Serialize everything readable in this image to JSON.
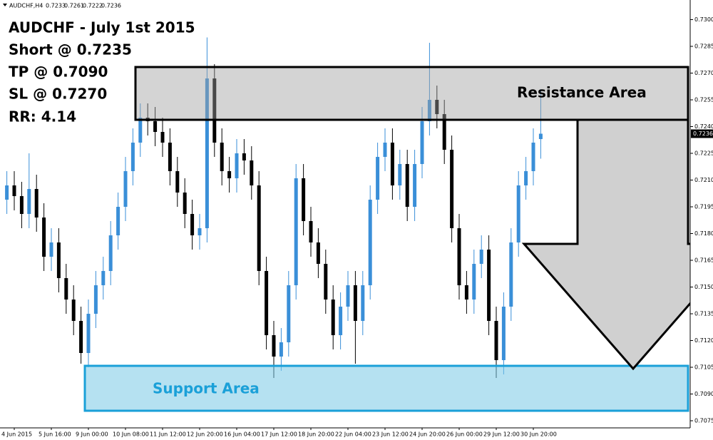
{
  "chart_data": {
    "type": "candlestick",
    "symbol": "AUDCHF,H4",
    "categories": [
      null,
      "4 Jun 2015",
      null,
      null,
      null,
      null,
      "5 Jun 16:00",
      null,
      null,
      null,
      null,
      "9 Jun 00:00",
      null,
      null,
      null,
      null,
      "10 Jun 08:00",
      null,
      null,
      null,
      null,
      "11 Jun 12:00",
      null,
      null,
      null,
      null,
      "12 Jun 20:00",
      null,
      null,
      null,
      null,
      "16 Jun 04:00",
      null,
      null,
      null,
      null,
      "17 Jun 12:00",
      null,
      null,
      null,
      null,
      "18 Jun 20:00",
      null,
      null,
      null,
      null,
      "22 Jun 04:00",
      null,
      null,
      null,
      null,
      "23 Jun 12:00",
      null,
      null,
      null,
      null,
      "24 Jun 20:00",
      null,
      null,
      null,
      null,
      "26 Jun 00:00",
      null,
      null,
      null,
      null,
      "29 Jun 12:00",
      null,
      null,
      null,
      null,
      "30 Jun 20:00",
      null
    ],
    "open": [
      0.7199,
      0.7207,
      0.7201,
      0.7191,
      0.7205,
      0.7189,
      0.7167,
      0.7175,
      0.7155,
      0.7143,
      0.7131,
      0.7113,
      0.7135,
      0.7151,
      0.7159,
      0.7179,
      0.7195,
      0.7215,
      0.7231,
      0.7245,
      0.7243,
      0.7237,
      0.7231,
      0.7215,
      0.7203,
      0.7191,
      0.7179,
      0.7183,
      0.7267,
      0.7231,
      0.7215,
      0.7211,
      0.7225,
      0.7221,
      0.7207,
      0.7159,
      0.7123,
      0.7111,
      0.7119,
      0.7151,
      0.7211,
      0.7187,
      0.7175,
      0.7163,
      0.7143,
      0.7123,
      0.7139,
      0.7151,
      0.7131,
      0.7151,
      0.7199,
      0.7223,
      0.7231,
      0.7207,
      0.7219,
      0.7195,
      0.7219,
      0.7243,
      0.7255,
      0.7247,
      0.7227,
      0.7183,
      0.7151,
      0.7143,
      0.7163,
      0.7171,
      0.7131,
      0.7109,
      0.7139,
      0.7175,
      0.7207,
      0.7215,
      0.7233
    ],
    "high": [
      0.7215,
      0.7215,
      0.7209,
      0.7225,
      0.7213,
      0.7197,
      0.7183,
      0.7183,
      0.7163,
      0.7151,
      0.7139,
      0.7143,
      0.7159,
      0.7167,
      0.7187,
      0.7203,
      0.7223,
      0.7239,
      0.7253,
      0.7253,
      0.7251,
      0.7245,
      0.7239,
      0.7223,
      0.7211,
      0.7199,
      0.7191,
      0.729,
      0.7275,
      0.7239,
      0.7223,
      0.7233,
      0.7233,
      0.7229,
      0.7215,
      0.7167,
      0.7131,
      0.7127,
      0.7159,
      0.7219,
      0.7219,
      0.7195,
      0.7183,
      0.7171,
      0.7151,
      0.7147,
      0.7159,
      0.7159,
      0.7159,
      0.7207,
      0.7231,
      0.7239,
      0.7239,
      0.7227,
      0.7227,
      0.7227,
      0.7251,
      0.7287,
      0.7263,
      0.7255,
      0.7235,
      0.7191,
      0.7159,
      0.7171,
      0.7179,
      0.7179,
      0.7139,
      0.7147,
      0.7183,
      0.7215,
      0.7223,
      0.7239,
      0.7261
    ],
    "low": [
      0.7191,
      0.7193,
      0.7183,
      0.7183,
      0.7181,
      0.7159,
      0.7159,
      0.7147,
      0.7135,
      0.7123,
      0.7107,
      0.7105,
      0.7127,
      0.7143,
      0.7151,
      0.7171,
      0.7187,
      0.7207,
      0.7223,
      0.7235,
      0.7229,
      0.7223,
      0.7207,
      0.7195,
      0.7183,
      0.7171,
      0.7171,
      0.7175,
      0.7223,
      0.7207,
      0.7203,
      0.7203,
      0.7213,
      0.7199,
      0.7151,
      0.7115,
      0.7099,
      0.7103,
      0.7111,
      0.7143,
      0.7179,
      0.7167,
      0.7155,
      0.7135,
      0.7115,
      0.7115,
      0.7131,
      0.7107,
      0.7123,
      0.7143,
      0.7191,
      0.7215,
      0.7199,
      0.7199,
      0.7187,
      0.7187,
      0.7211,
      0.7235,
      0.7239,
      0.7219,
      0.7175,
      0.7143,
      0.7135,
      0.7135,
      0.7155,
      0.7123,
      0.7099,
      0.7101,
      0.7131,
      0.7167,
      0.7199,
      0.7207,
      0.7222
    ],
    "close": [
      0.7207,
      0.7201,
      0.7191,
      0.7205,
      0.7189,
      0.7167,
      0.7175,
      0.7155,
      0.7143,
      0.7131,
      0.7113,
      0.7135,
      0.7151,
      0.7159,
      0.7179,
      0.7195,
      0.7215,
      0.7231,
      0.7245,
      0.7243,
      0.7237,
      0.7231,
      0.7215,
      0.7203,
      0.7191,
      0.7179,
      0.7183,
      0.7267,
      0.7231,
      0.7215,
      0.7211,
      0.7225,
      0.7221,
      0.7207,
      0.7159,
      0.7123,
      0.7111,
      0.7119,
      0.7151,
      0.7211,
      0.7187,
      0.7175,
      0.7163,
      0.7143,
      0.7123,
      0.7139,
      0.7151,
      0.7131,
      0.7151,
      0.7199,
      0.7223,
      0.7231,
      0.7207,
      0.7219,
      0.7195,
      0.7219,
      0.7243,
      0.7255,
      0.7247,
      0.7227,
      0.7183,
      0.7151,
      0.7143,
      0.7163,
      0.7171,
      0.7131,
      0.7109,
      0.7139,
      0.7175,
      0.7207,
      0.7215,
      0.7231,
      0.7236
    ],
    "up_color": "#3a8fd8",
    "down_color": "#000000",
    "ylim": [
      0.7071,
      0.7311
    ],
    "yticks": [
      0.7075,
      {
        "value": 0.709,
        "label": "0.7090"
      },
      0.7105,
      {
        "value": 0.712,
        "label": "0.7120"
      },
      0.7135,
      {
        "value": 0.715,
        "label": "0.7150"
      },
      0.7165,
      {
        "value": 0.718,
        "label": "0.7180"
      },
      0.7195,
      {
        "value": 0.721,
        "label": "0.7210"
      },
      0.7225,
      {
        "value": 0.724,
        "label": "0.7240"
      },
      0.7255,
      {
        "value": 0.727,
        "label": "0.7270"
      },
      0.7285,
      {
        "value": 0.73,
        "label": "0.7300"
      }
    ],
    "last_price": 0.7236,
    "annotations": [
      "AUDCHF - July 1st 2015",
      "Short @ 0.7235",
      "TP @ 0.7090",
      "SL @ 0.7270",
      "RR: 4.14"
    ],
    "resistance_label": "Resistance Area",
    "support_label": "Support Area",
    "grid": false
  }
}
